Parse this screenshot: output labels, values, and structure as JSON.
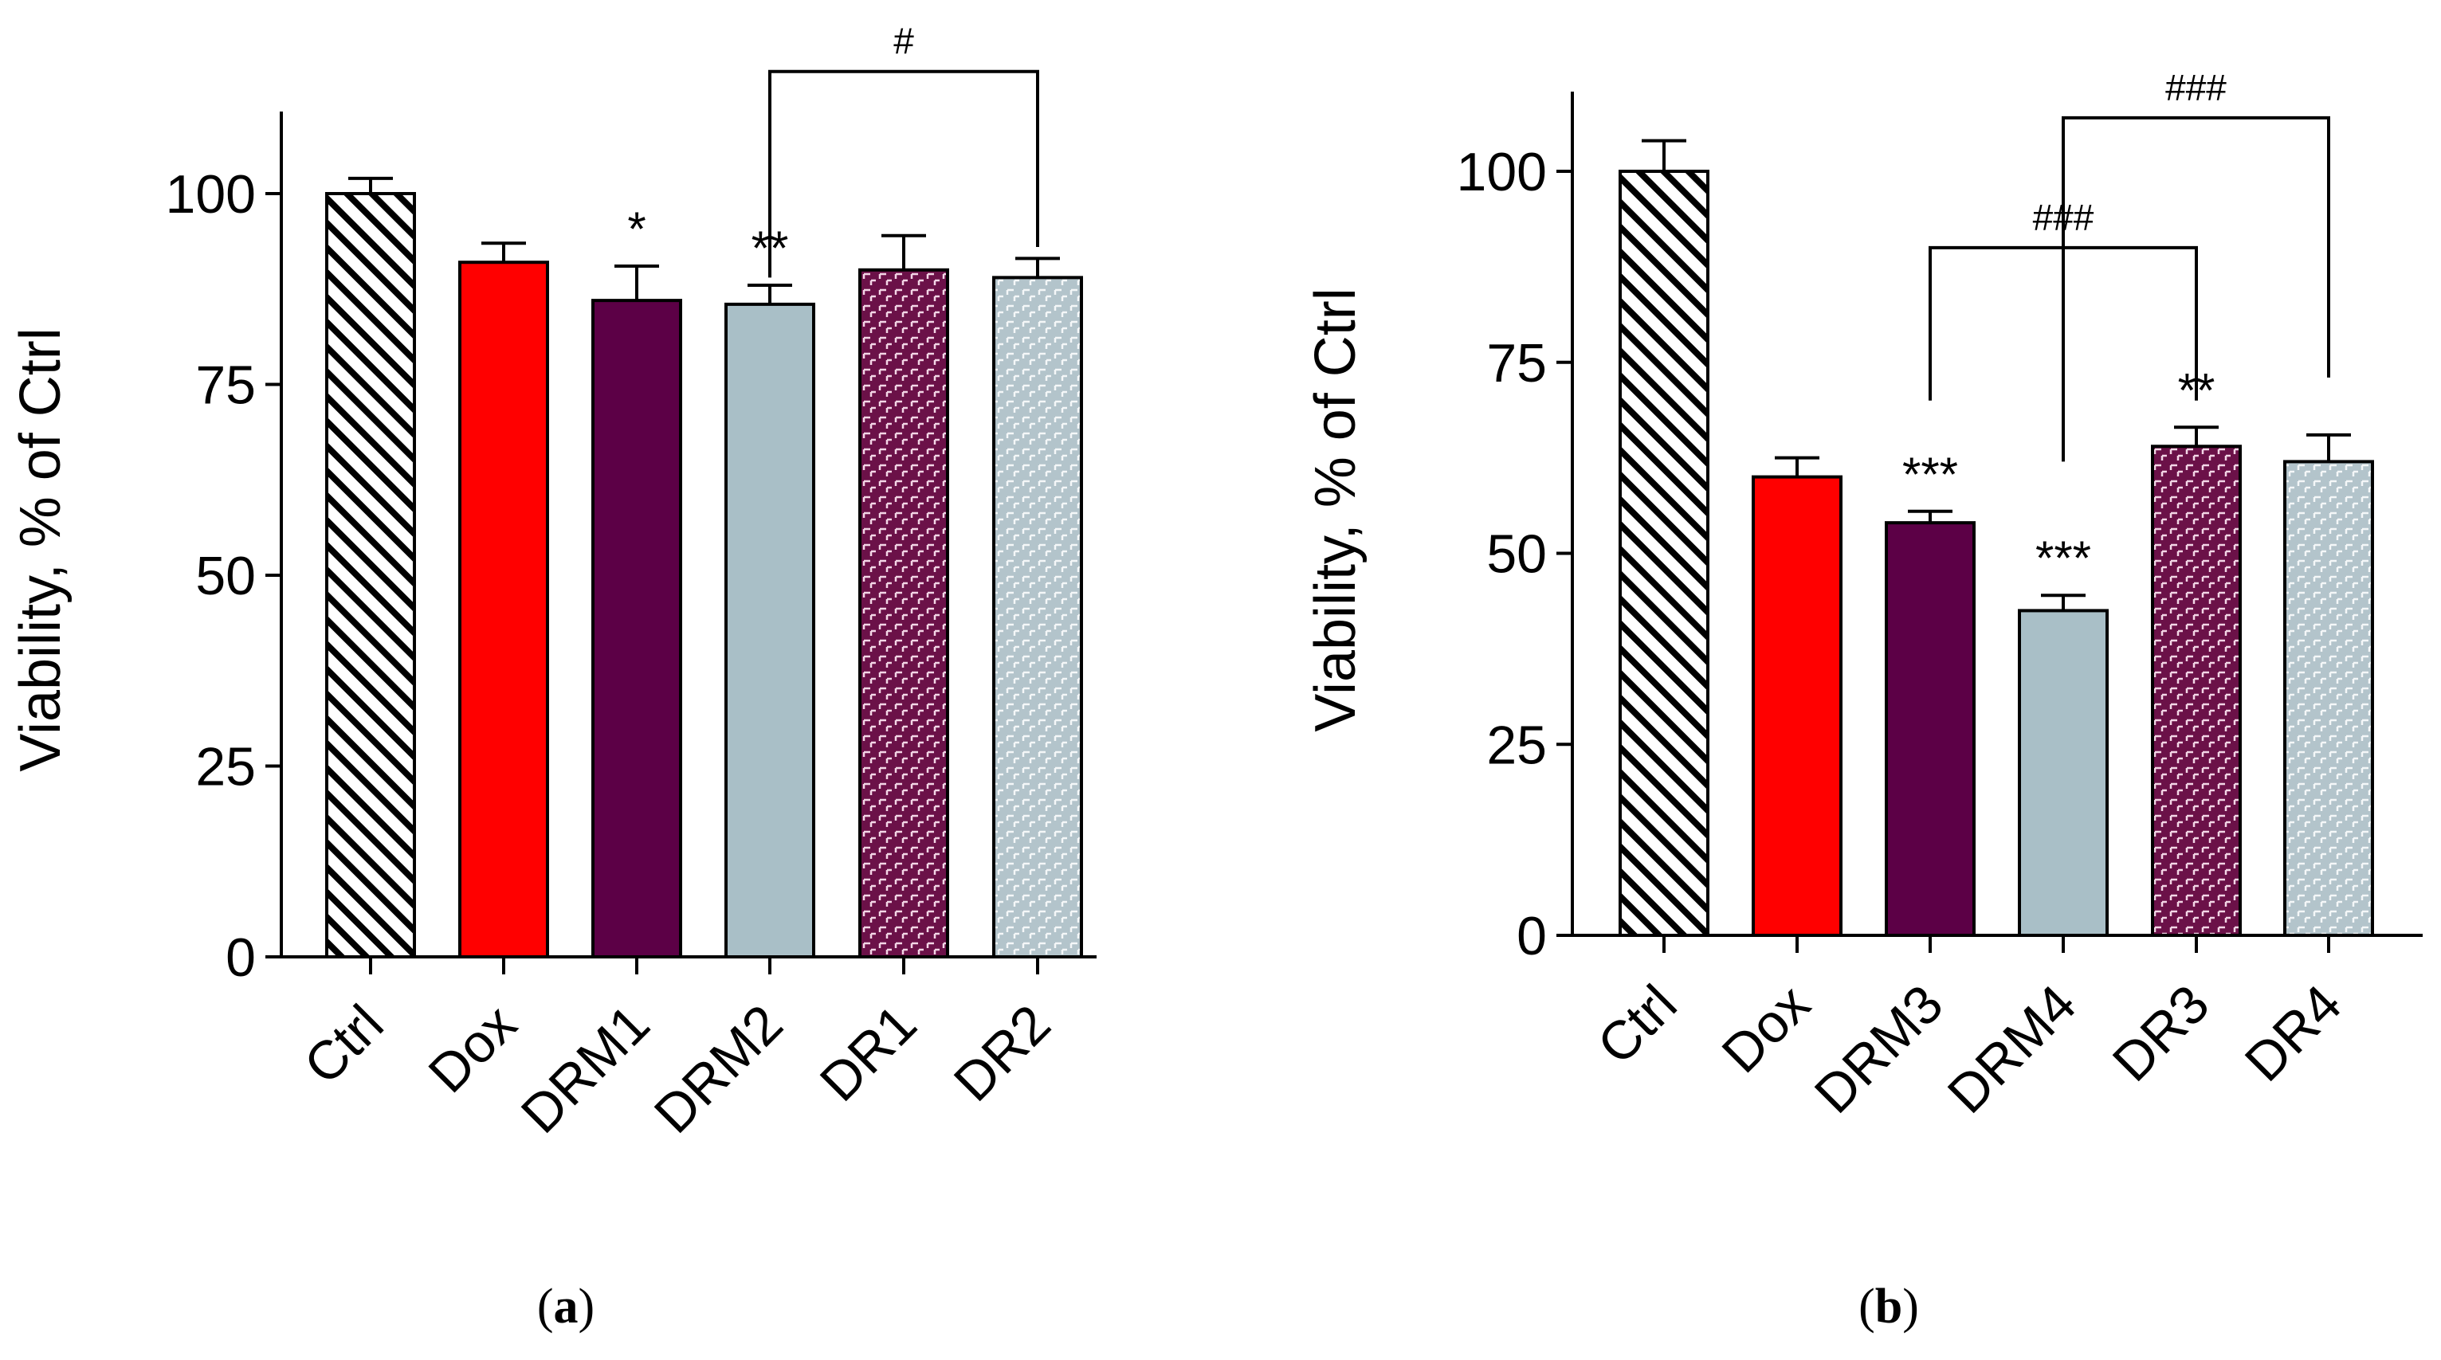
{
  "chart_data": [
    {
      "type": "bar",
      "panel_label": "(a)",
      "panel_letter": "a",
      "ylabel": "Viability, % of Ctrl",
      "xlabel": "",
      "ylim": [
        0,
        110
      ],
      "yticks": [
        0,
        25,
        50,
        75,
        100
      ],
      "categories": [
        "Ctrl",
        "Dox",
        "DRM1",
        "DRM2",
        "DR1",
        "DR2"
      ],
      "values": [
        100,
        91,
        86,
        85.5,
        90,
        89
      ],
      "errors": [
        2,
        2.5,
        4.5,
        2.5,
        4.5,
        2.5
      ],
      "fills": [
        "hatch",
        "#ff0000",
        "#5c0046",
        "#a9bfc7",
        "pattern-purple",
        "pattern-grey"
      ],
      "significance": [
        "",
        "",
        "*",
        "**",
        "",
        ""
      ],
      "brackets": [
        {
          "from": "DRM2",
          "to": "DR2",
          "from_value": 89,
          "to_value": 93,
          "level": 116,
          "label": "#"
        }
      ]
    },
    {
      "type": "bar",
      "panel_label": "(b)",
      "panel_letter": "b",
      "ylabel": "Viability, % of Ctrl",
      "xlabel": "",
      "ylim": [
        0,
        110
      ],
      "yticks": [
        0,
        25,
        50,
        75,
        100
      ],
      "categories": [
        "Ctrl",
        "Dox",
        "DRM3",
        "DRM4",
        "DR3",
        "DR4"
      ],
      "values": [
        100,
        60,
        54,
        42.5,
        64,
        62
      ],
      "errors": [
        4,
        2.5,
        1.5,
        2,
        2.5,
        3.5
      ],
      "fills": [
        "hatch",
        "#ff0000",
        "#5c0046",
        "#a9bfc7",
        "pattern-purple",
        "pattern-grey"
      ],
      "significance": [
        "",
        "",
        "***",
        "***",
        "**",
        ""
      ],
      "brackets": [
        {
          "from": "DRM3",
          "to": "DR3",
          "from_value": 70,
          "to_value": 70,
          "level": 90,
          "label": "###"
        },
        {
          "from": "DRM4",
          "to": "DR4",
          "from_value": 62,
          "to_value": 73,
          "level": 107,
          "label": "###"
        }
      ]
    }
  ]
}
